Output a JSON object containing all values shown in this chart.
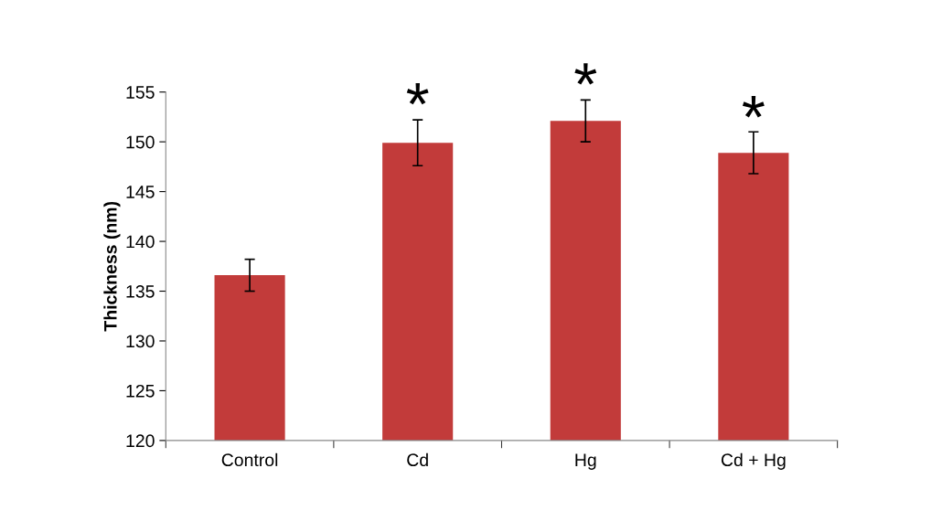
{
  "chart_data": {
    "type": "bar",
    "ylabel": "Thickness (nm)",
    "categories": [
      "Control",
      "Cd",
      "Hg",
      "Cd + Hg"
    ],
    "values": [
      136.6,
      149.9,
      152.1,
      148.9
    ],
    "errors": [
      1.6,
      2.3,
      2.1,
      2.1
    ],
    "color": "#c23b3a",
    "ylim": [
      120,
      155
    ],
    "yticks": [
      120,
      125,
      130,
      135,
      140,
      145,
      150,
      155
    ],
    "grid": false,
    "annotations": [
      {
        "text": "*",
        "x": "Cd",
        "y": 152.2
      },
      {
        "text": "*",
        "x": "Hg",
        "y": 154.2
      },
      {
        "text": "*",
        "x": "Cd + Hg",
        "y": 150.9
      }
    ]
  }
}
